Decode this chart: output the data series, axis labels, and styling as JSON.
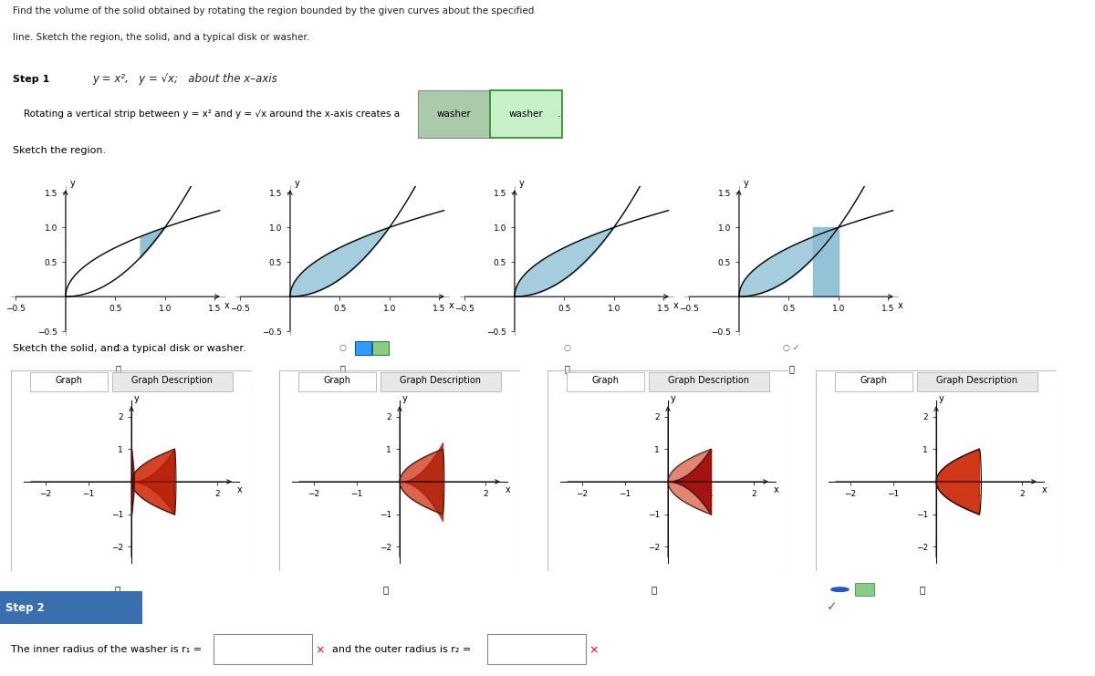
{
  "title_line1": "Find the volume of the solid obtained by rotating the region bounded by the given curves about the specified",
  "title_line2": "line. Sketch the region, the solid, and a typical disk or washer.",
  "eq_text": "y = x²,   y = √x;   about the x–axis",
  "step1_label": "Step 1",
  "step1_body": "Rotating a vertical strip between y = x² and y = √x around the x-axis creates a",
  "washer_word": "washer",
  "sketch_region_label": "Sketch the region.",
  "sketch_solid_label": "Sketch the solid, and a typical disk or washer.",
  "graph_tab": "Graph",
  "graph_desc_tab": "Graph Description",
  "step2_label": "Step 2",
  "step2_text1": "The inner radius of the washer is r₁ =",
  "step2_text2": "and the outer radius is r₂ =",
  "fill_blue": "#89bdd3",
  "fill_blue_alpha": 0.75,
  "red_fill": "#cc2200",
  "darkred": "#8b0000",
  "bg": "#ffffff",
  "step2_blue": "#3a6faf",
  "border_gray": "#cccccc"
}
